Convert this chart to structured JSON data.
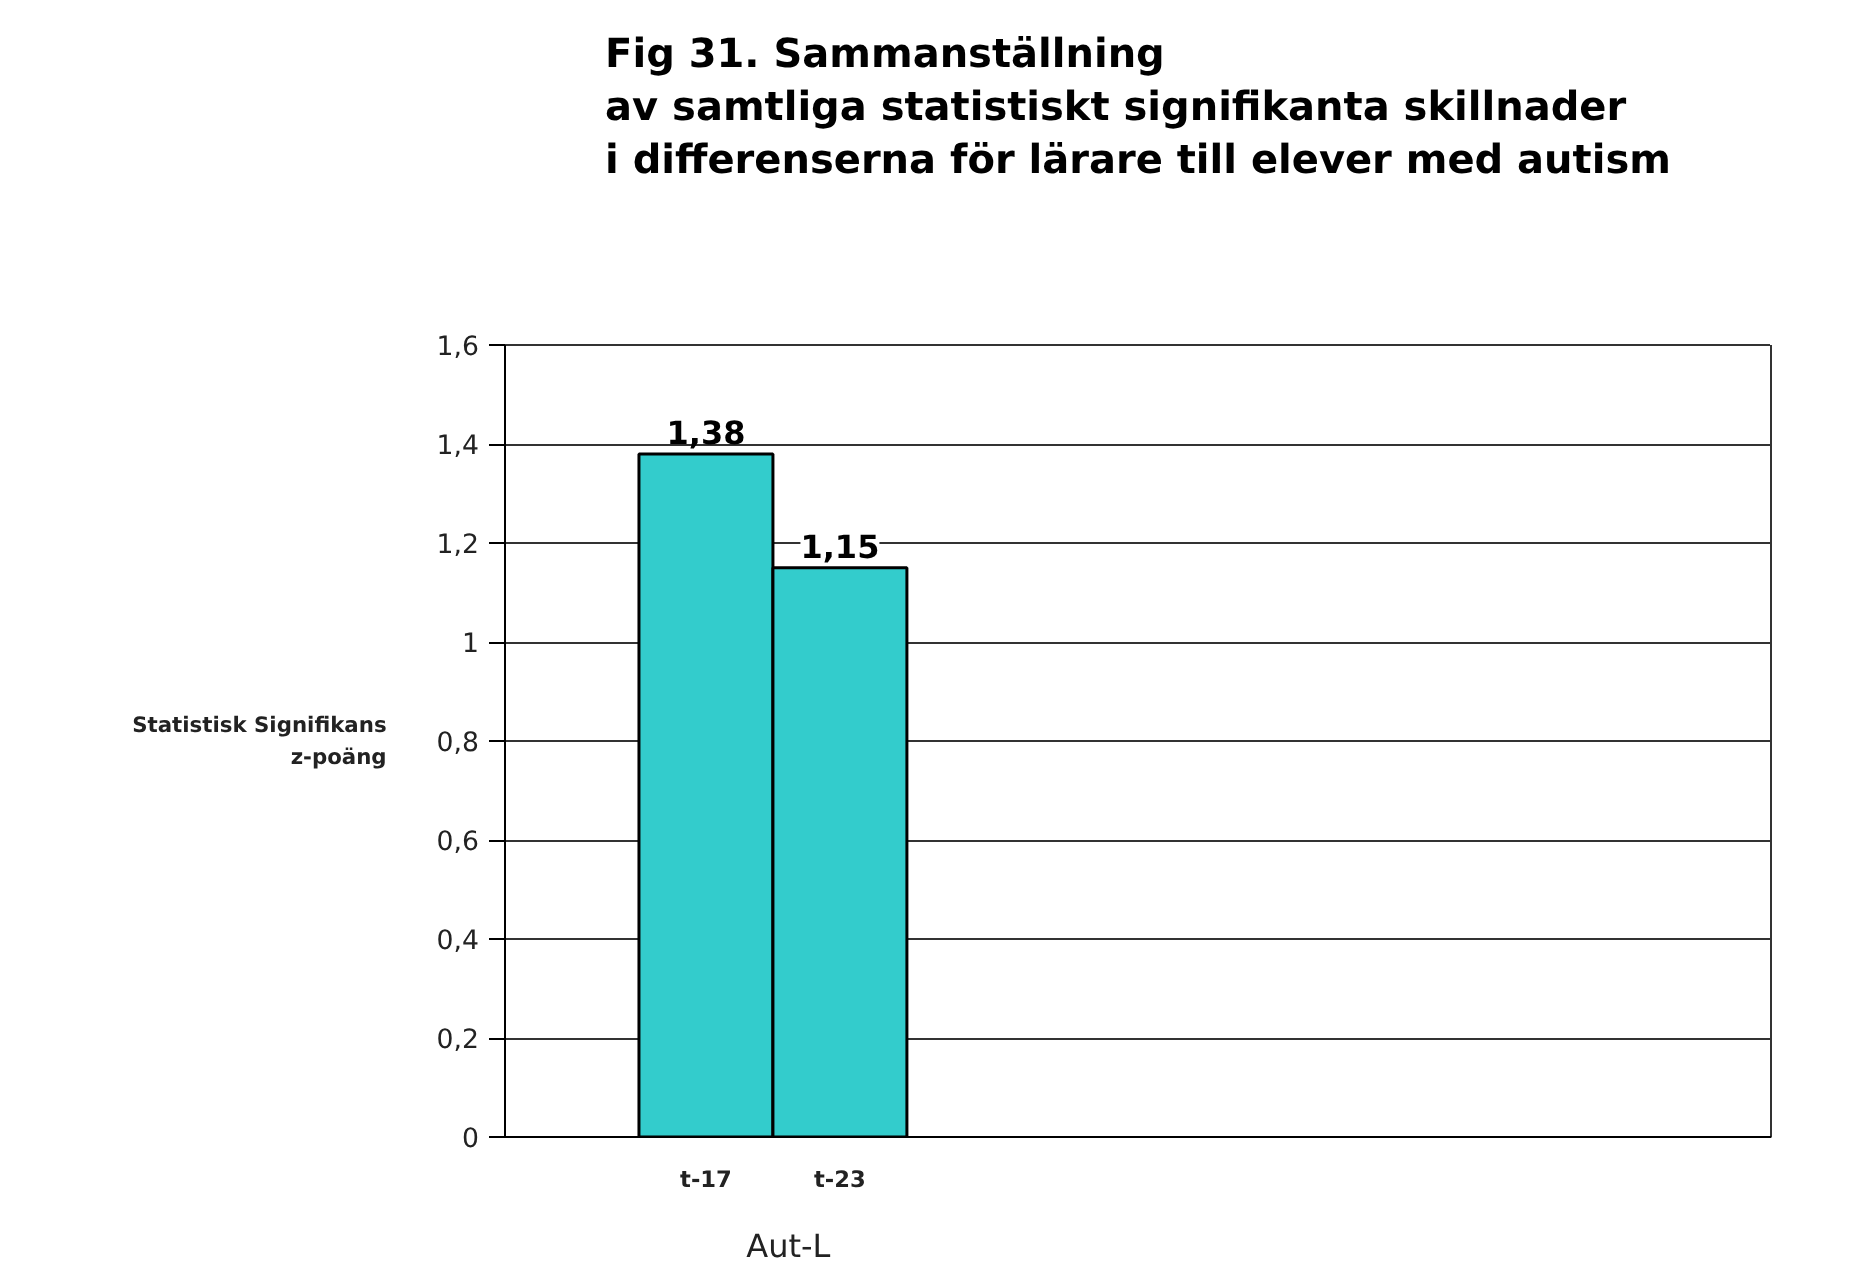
{
  "chart_data": {
    "type": "bar",
    "title": "Fig 31.  Sammanställning\nav samtliga statistiskt signifikanta skillnader\ni differenserna för lärare till elever med autism",
    "xlabel": "Aut-L",
    "ylabel": "Statistisk Signifikans\nz-poäng",
    "categories": [
      "t-17",
      "t-23"
    ],
    "values": [
      1.38,
      1.15
    ],
    "value_labels": [
      "1,38",
      "1,15"
    ],
    "color": "#33cccc",
    "ylim": [
      0,
      1.6
    ],
    "yticks": [
      0,
      {
        "value": 0.2,
        "label": "0,2"
      },
      {
        "value": 0.4,
        "label": "0,4"
      },
      {
        "value": 0.6,
        "label": "0,6"
      },
      {
        "value": 0.8,
        "label": "0,8"
      },
      1,
      {
        "value": 1.2,
        "label": "1,2"
      },
      {
        "value": 1.4,
        "label": "1,4"
      },
      {
        "value": 1.6,
        "label": "1,6"
      }
    ],
    "grid": "y"
  }
}
